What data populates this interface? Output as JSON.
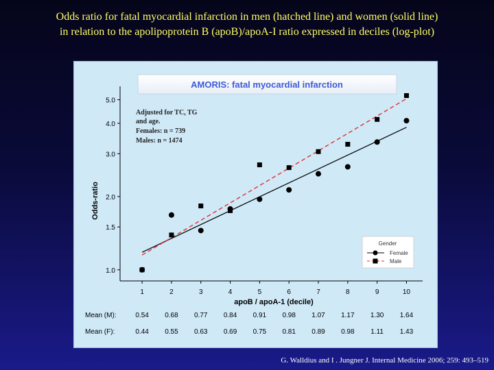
{
  "slide": {
    "title_line1": "Odds ratio for fatal myocardial infarction in men (hatched line) and women (solid line)",
    "title_line2": "in relation to the apolipoprotein B (apoB)/apoA-I ratio expressed in deciles (log-plot)",
    "citation": "G. Walldius and  I . Jungner J. Internal Medicine 2006; 259: 493–519"
  },
  "colors": {
    "title_text": "#ffff66",
    "panel_bg": "#cfe9f7",
    "male_line": "#e03030",
    "female_line": "#000000",
    "banner_text": "#3b5bd6"
  },
  "chart_data": {
    "type": "line",
    "title": "AMORIS: fatal myocardial infarction",
    "xlabel": "apoB / apoA-1 (decile)",
    "ylabel": "Odds-ratio",
    "yscale": "log",
    "ylim": [
      0.9,
      5.9
    ],
    "xlim": [
      0.25,
      10.55
    ],
    "x": [
      1,
      2,
      3,
      4,
      5,
      6,
      7,
      8,
      9,
      10
    ],
    "y_ticks": [
      1.0,
      1.5,
      2.0,
      3.0,
      4.0,
      5.0
    ],
    "y_tick_labels": [
      "1.0",
      "1.5",
      "2.0",
      "3.0",
      "4.0",
      "5.0"
    ],
    "x_tick_labels": [
      "1",
      "2",
      "3",
      "4",
      "5",
      "6",
      "7",
      "8",
      "9",
      "10"
    ],
    "series": [
      {
        "name": "Female",
        "marker": "circle",
        "line_style": "solid",
        "values": [
          1.0,
          1.68,
          1.45,
          1.78,
          1.95,
          2.13,
          2.48,
          2.65,
          3.35,
          4.1
        ],
        "fit_line": [
          1.18,
          3.85
        ]
      },
      {
        "name": "Male",
        "marker": "square",
        "line_style": "dashed",
        "values": [
          1.0,
          1.39,
          1.83,
          1.75,
          2.7,
          2.63,
          3.06,
          3.28,
          4.15,
          5.2
        ],
        "fit_line": [
          1.15,
          5.05
        ]
      }
    ],
    "legend": {
      "title": "Gender",
      "position": "bottom-right",
      "entries": [
        "Female",
        "Male"
      ]
    },
    "annotation": {
      "line1": "Adjusted for TC, TG",
      "line2": "and age.",
      "line3": "Females: n = 739",
      "line4": "Males: n = 1474"
    },
    "means_table": {
      "rows": [
        {
          "label": "Mean (M):",
          "values": [
            "0.54",
            "0.68",
            "0.77",
            "0.84",
            "0.91",
            "0.98",
            "1.07",
            "1.17",
            "1.30",
            "1.64"
          ]
        },
        {
          "label": "Mean (F):",
          "values": [
            "0.44",
            "0.55",
            "0.63",
            "0.69",
            "0.75",
            "0.81",
            "0.89",
            "0.98",
            "1.11",
            "1.43"
          ]
        }
      ]
    }
  }
}
